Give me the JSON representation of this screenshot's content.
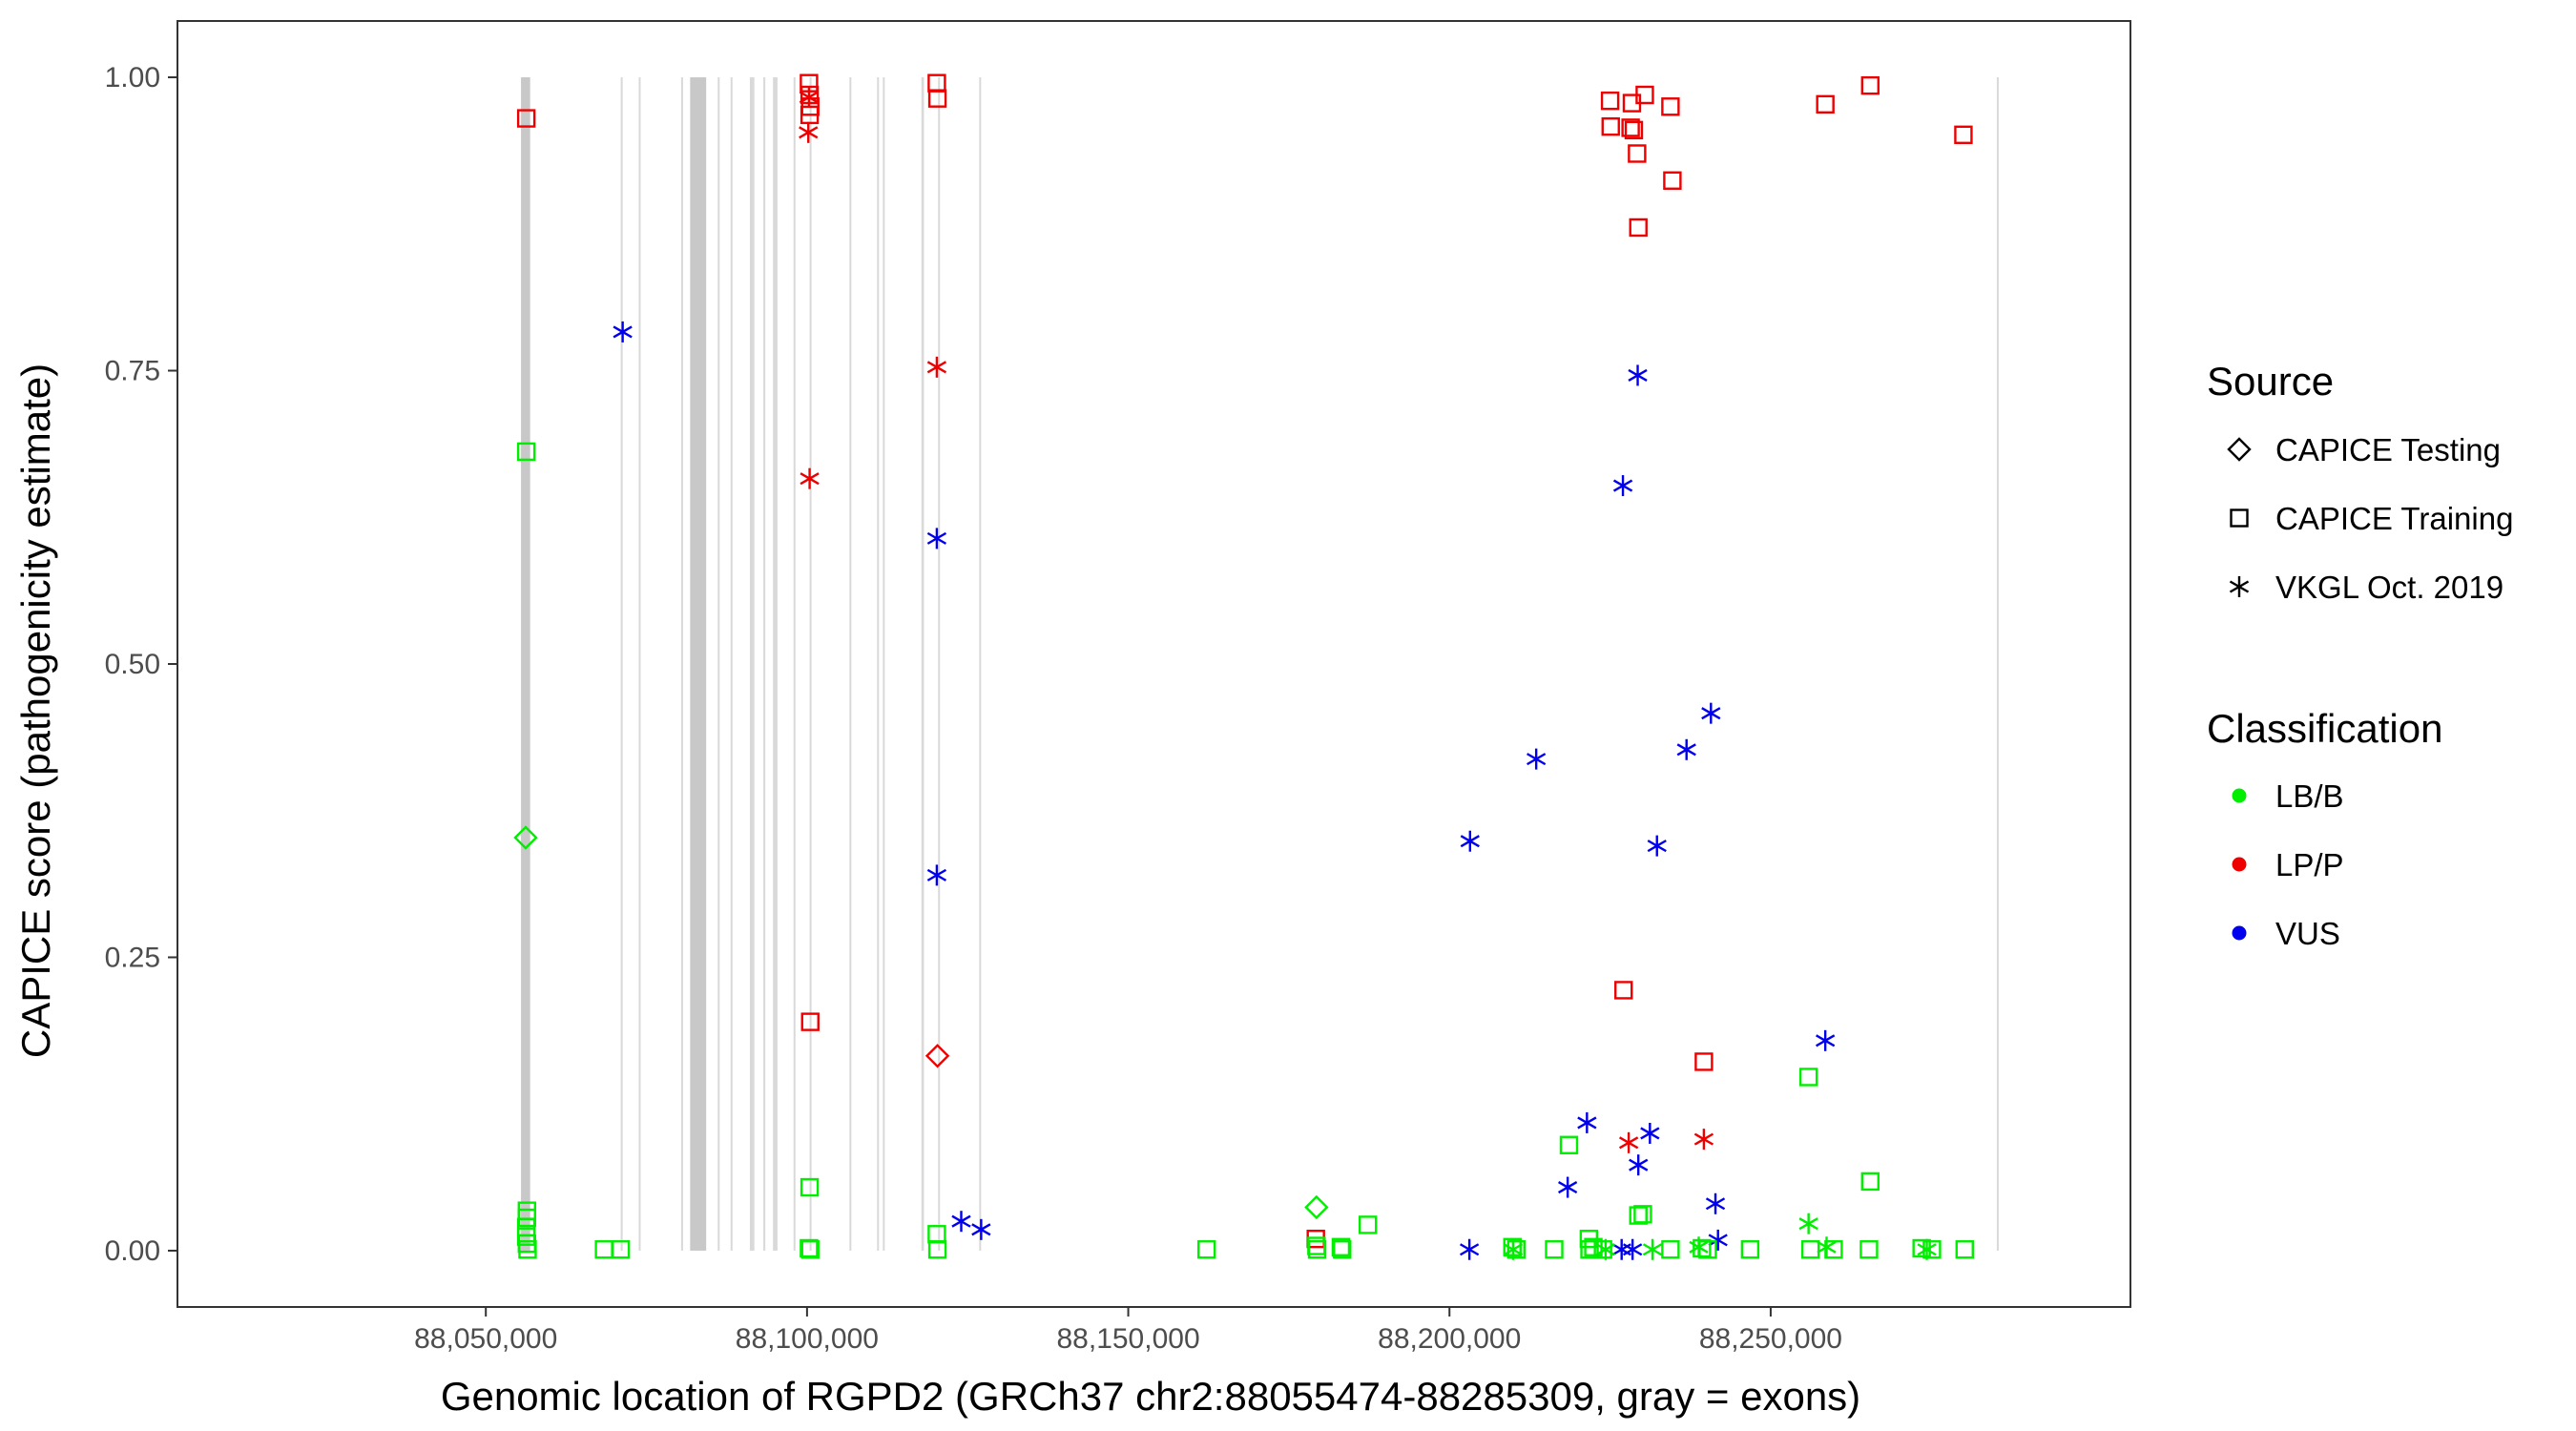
{
  "chart_data": {
    "type": "scatter",
    "xlabel": "Genomic location of RGPD2 (GRCh37 chr2:88055474-88285309, gray = exons)",
    "ylabel": "CAPICE score (pathogenicity estimate)",
    "xlim": [
      88002000,
      88306000
    ],
    "ylim": [
      -0.048,
      1.048
    ],
    "x_ticks": [
      88050000,
      88100000,
      88150000,
      88200000,
      88250000
    ],
    "x_tick_labels": [
      "88,050,000",
      "88,100,000",
      "88,150,000",
      "88,200,000",
      "88,250,000"
    ],
    "y_ticks": [
      0,
      0.25,
      0.5,
      0.75,
      1
    ],
    "y_tick_labels": [
      "0.00",
      "0.25",
      "0.50",
      "0.75",
      "1.00"
    ],
    "exons": [
      [
        88055474,
        88056900
      ],
      [
        88071000,
        88071300
      ],
      [
        88073800,
        88074000
      ],
      [
        88080400,
        88080500
      ],
      [
        88081800,
        88084300
      ],
      [
        88086100,
        88086200
      ],
      [
        88088100,
        88088200
      ],
      [
        88091100,
        88091800
      ],
      [
        88093200,
        88093500
      ],
      [
        88094700,
        88095400
      ],
      [
        88097900,
        88098000
      ],
      [
        88100400,
        88100500
      ],
      [
        88106600,
        88106900
      ],
      [
        88110900,
        88111200
      ],
      [
        88111800,
        88112000
      ],
      [
        88117800,
        88118200
      ],
      [
        88120400,
        88120500
      ],
      [
        88126800,
        88127000
      ],
      [
        88285200,
        88285309
      ]
    ],
    "legend": {
      "source_title": "Source",
      "sources": [
        {
          "name": "CAPICE Testing",
          "shape": "diamond"
        },
        {
          "name": "CAPICE Training",
          "shape": "square"
        },
        {
          "name": "VKGL Oct. 2019",
          "shape": "asterisk"
        }
      ],
      "classification_title": "Classification",
      "classes": [
        {
          "name": "LB/B",
          "color": "#00ee00"
        },
        {
          "name": "LP/P",
          "color": "#ee0000"
        },
        {
          "name": "VUS",
          "color": "#0000ee"
        }
      ]
    },
    "series": [
      {
        "name": "LP/P CAPICE Training",
        "source": "CAPICE Training",
        "class": "LP/P",
        "points": [
          [
            88056300,
            0.965
          ],
          [
            88100300,
            0.995
          ],
          [
            88100400,
            0.985
          ],
          [
            88100500,
            0.975
          ],
          [
            88100400,
            0.968
          ],
          [
            88100500,
            0.195
          ],
          [
            88120200,
            0.995
          ],
          [
            88120300,
            0.982
          ],
          [
            88225000,
            0.98
          ],
          [
            88225100,
            0.958
          ],
          [
            88228400,
            0.978
          ],
          [
            88228200,
            0.957
          ],
          [
            88228700,
            0.955
          ],
          [
            88229200,
            0.935
          ],
          [
            88229400,
            0.872
          ],
          [
            88230400,
            0.985
          ],
          [
            88234400,
            0.975
          ],
          [
            88234700,
            0.912
          ],
          [
            88227100,
            0.222
          ],
          [
            88239600,
            0.161
          ],
          [
            88258500,
            0.977
          ],
          [
            88265500,
            0.993
          ],
          [
            88280000,
            0.951
          ],
          [
            88179200,
            0.01
          ]
        ]
      },
      {
        "name": "LP/P VKGL",
        "source": "VKGL Oct. 2019",
        "class": "LP/P",
        "points": [
          [
            88100300,
            0.983
          ],
          [
            88100200,
            0.953
          ],
          [
            88100400,
            0.658
          ],
          [
            88120200,
            0.753
          ],
          [
            88227900,
            0.092
          ],
          [
            88239600,
            0.095
          ]
        ]
      },
      {
        "name": "LP/P CAPICE Testing",
        "source": "CAPICE Testing",
        "class": "LP/P",
        "points": [
          [
            88120300,
            0.166
          ]
        ]
      },
      {
        "name": "VUS VKGL",
        "source": "VKGL Oct. 2019",
        "class": "VUS",
        "points": [
          [
            88071300,
            0.783
          ],
          [
            88120200,
            0.607
          ],
          [
            88120200,
            0.32
          ],
          [
            88124000,
            0.025
          ],
          [
            88127100,
            0.018
          ],
          [
            88203200,
            0.349
          ],
          [
            88213500,
            0.419
          ],
          [
            88229300,
            0.746
          ],
          [
            88227000,
            0.652
          ],
          [
            88232300,
            0.345
          ],
          [
            88236900,
            0.427
          ],
          [
            88240700,
            0.458
          ],
          [
            88258500,
            0.179
          ],
          [
            88221400,
            0.109
          ],
          [
            88218400,
            0.054
          ],
          [
            88231200,
            0.1
          ],
          [
            88229400,
            0.073
          ],
          [
            88241400,
            0.04
          ],
          [
            88241800,
            0.009
          ],
          [
            88203100,
            0.001
          ],
          [
            88226800,
            0.001
          ],
          [
            88228500,
            0.001
          ]
        ]
      },
      {
        "name": "LB/B CAPICE Training",
        "source": "CAPICE Training",
        "class": "LB/B",
        "points": [
          [
            88056300,
            0.681
          ],
          [
            88056400,
            0.034
          ],
          [
            88056400,
            0.028
          ],
          [
            88056300,
            0.02
          ],
          [
            88056300,
            0.012
          ],
          [
            88056400,
            0.006
          ],
          [
            88056500,
            0.001
          ],
          [
            88068400,
            0.001
          ],
          [
            88071000,
            0.001
          ],
          [
            88100400,
            0.054
          ],
          [
            88100300,
            0.002
          ],
          [
            88100500,
            0.001
          ],
          [
            88120200,
            0.014
          ],
          [
            88120300,
            0.001
          ],
          [
            88162200,
            0.001
          ],
          [
            88179300,
            0.004
          ],
          [
            88179400,
            0.001
          ],
          [
            88183100,
            0.003
          ],
          [
            88183300,
            0.001
          ],
          [
            88187300,
            0.022
          ],
          [
            88209800,
            0.003
          ],
          [
            88210400,
            0.001
          ],
          [
            88216300,
            0.001
          ],
          [
            88218600,
            0.09
          ],
          [
            88221700,
            0.01
          ],
          [
            88222400,
            0.003
          ],
          [
            88221800,
            0.001
          ],
          [
            88223900,
            0.001
          ],
          [
            88229400,
            0.03
          ],
          [
            88230100,
            0.031
          ],
          [
            88234400,
            0.001
          ],
          [
            88239300,
            0.002
          ],
          [
            88240200,
            0.001
          ],
          [
            88246800,
            0.001
          ],
          [
            88255900,
            0.148
          ],
          [
            88256200,
            0.001
          ],
          [
            88259800,
            0.001
          ],
          [
            88265500,
            0.059
          ],
          [
            88265300,
            0.001
          ],
          [
            88273500,
            0.002
          ],
          [
            88275100,
            0.001
          ],
          [
            88280200,
            0.001
          ]
        ]
      },
      {
        "name": "LB/B VKGL",
        "source": "VKGL Oct. 2019",
        "class": "LB/B",
        "points": [
          [
            88209900,
            0.001
          ],
          [
            88224300,
            0.001
          ],
          [
            88231600,
            0.001
          ],
          [
            88238800,
            0.003
          ],
          [
            88255900,
            0.023
          ],
          [
            88258700,
            0.003
          ],
          [
            88274300,
            0.001
          ]
        ]
      },
      {
        "name": "LB/B CAPICE Testing",
        "source": "CAPICE Testing",
        "class": "LB/B",
        "points": [
          [
            88056200,
            0.352
          ],
          [
            88179300,
            0.037
          ]
        ]
      }
    ]
  }
}
